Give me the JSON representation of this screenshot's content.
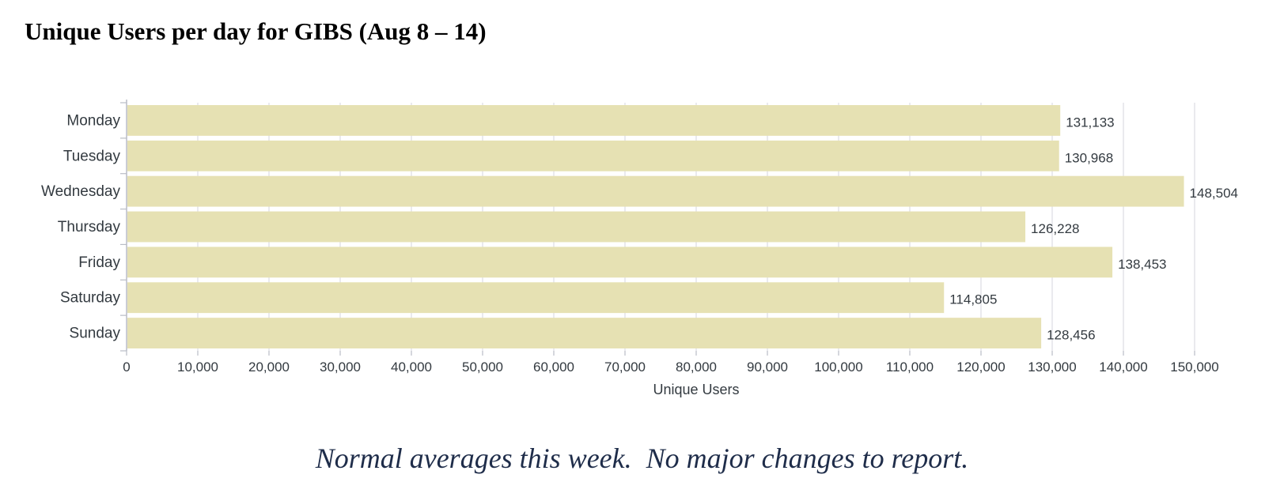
{
  "title": "Unique Users per day for GIBS (Aug 8 – 14)",
  "footnote": "Normal averages this week.  No major changes to report.",
  "chart_data": {
    "type": "bar",
    "orientation": "horizontal",
    "title": "",
    "categories": [
      "Monday",
      "Tuesday",
      "Wednesday",
      "Thursday",
      "Friday",
      "Saturday",
      "Sunday"
    ],
    "values": [
      131133,
      130968,
      148504,
      126228,
      138453,
      114805,
      128456
    ],
    "data_labels": [
      "131,133",
      "130,968",
      "148,504",
      "126,228",
      "138,453",
      "114,805",
      "128,456"
    ],
    "xlabel": "Unique Users",
    "ylabel": "",
    "xlim": [
      0,
      150000
    ],
    "x_ticks": [
      0,
      10000,
      20000,
      30000,
      40000,
      50000,
      60000,
      70000,
      80000,
      90000,
      100000,
      110000,
      120000,
      130000,
      140000,
      150000
    ],
    "x_tick_labels": [
      "0",
      "10,000",
      "20,000",
      "30,000",
      "40,000",
      "50,000",
      "60,000",
      "70,000",
      "80,000",
      "90,000",
      "100,000",
      "110,000",
      "120,000",
      "130,000",
      "140,000",
      "150,000"
    ],
    "grid": true,
    "legend": "none",
    "bar_color": "#e6e1b3",
    "grid_color": "#dcdde3",
    "axis_color": "#b9bcc6",
    "text_color": "#333a40"
  }
}
